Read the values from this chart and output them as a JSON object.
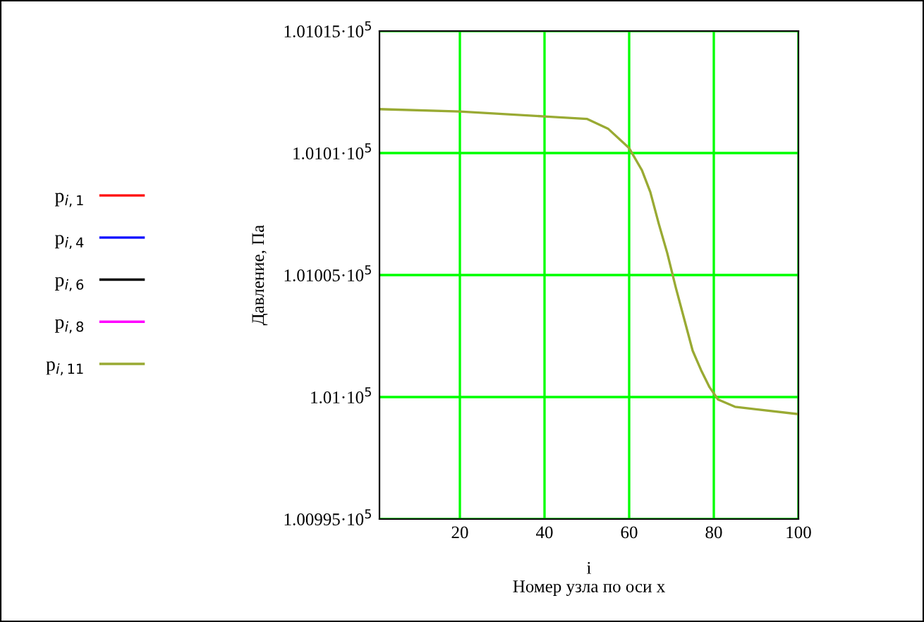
{
  "chart_data": {
    "type": "line",
    "xlabel": "i\nНомер узла по оси x",
    "ylabel": "Давление, Па",
    "x": [
      1,
      20,
      40,
      50,
      55,
      60,
      63,
      65,
      67,
      69,
      71,
      73,
      75,
      77,
      79,
      81,
      85,
      90,
      100
    ],
    "series": [
      {
        "name": "p$_{i,1}$",
        "color": "#ff0000",
        "values": [
          null,
          null,
          null,
          null,
          null,
          null,
          null,
          null,
          null,
          null,
          null,
          null,
          null,
          null,
          null,
          null,
          null,
          null,
          null
        ]
      },
      {
        "name": "p$_{i,4}$",
        "color": "#0000ff",
        "values": [
          null,
          null,
          null,
          null,
          null,
          null,
          null,
          null,
          null,
          null,
          null,
          null,
          null,
          null,
          null,
          null,
          null,
          null,
          null
        ]
      },
      {
        "name": "p$_{i,6}$",
        "color": "#000000",
        "values": [
          null,
          null,
          null,
          null,
          null,
          null,
          null,
          null,
          null,
          null,
          null,
          null,
          null,
          null,
          null,
          null,
          null,
          null,
          null
        ]
      },
      {
        "name": "p$_{i,8}$",
        "color": "#ff00ff",
        "values": [
          null,
          null,
          null,
          null,
          null,
          null,
          null,
          null,
          null,
          null,
          null,
          null,
          null,
          null,
          null,
          null,
          null,
          null,
          null
        ]
      },
      {
        "name": "p$_{i,11}$",
        "color": "#99aa33",
        "values": [
          101011.8,
          101011.7,
          101011.5,
          101011.4,
          101011.0,
          101010.2,
          101009.3,
          101008.4,
          101007.1,
          101005.9,
          101004.5,
          101003.2,
          101001.9,
          101001.1,
          101000.4,
          100999.9,
          100999.6,
          100999.5,
          100999.3
        ]
      }
    ],
    "xlim": [
      1,
      100
    ],
    "xticks": [
      20,
      40,
      60,
      80,
      100
    ],
    "ylim": [
      100995,
      101015
    ],
    "yticks": [
      {
        "value": 100995,
        "label": "1.00995·10$^{5}$"
      },
      {
        "value": 101000,
        "label": "1.01·10$^{5}$"
      },
      {
        "value": 101005,
        "label": "1.01005·10$^{5}$"
      },
      {
        "value": 101010,
        "label": "1.0101·10$^{5}$"
      },
      {
        "value": 101015,
        "label": "1.01015·10$^{5}$"
      }
    ],
    "grid": true,
    "legend": "left",
    "line_style": "solid",
    "marker": "none"
  }
}
